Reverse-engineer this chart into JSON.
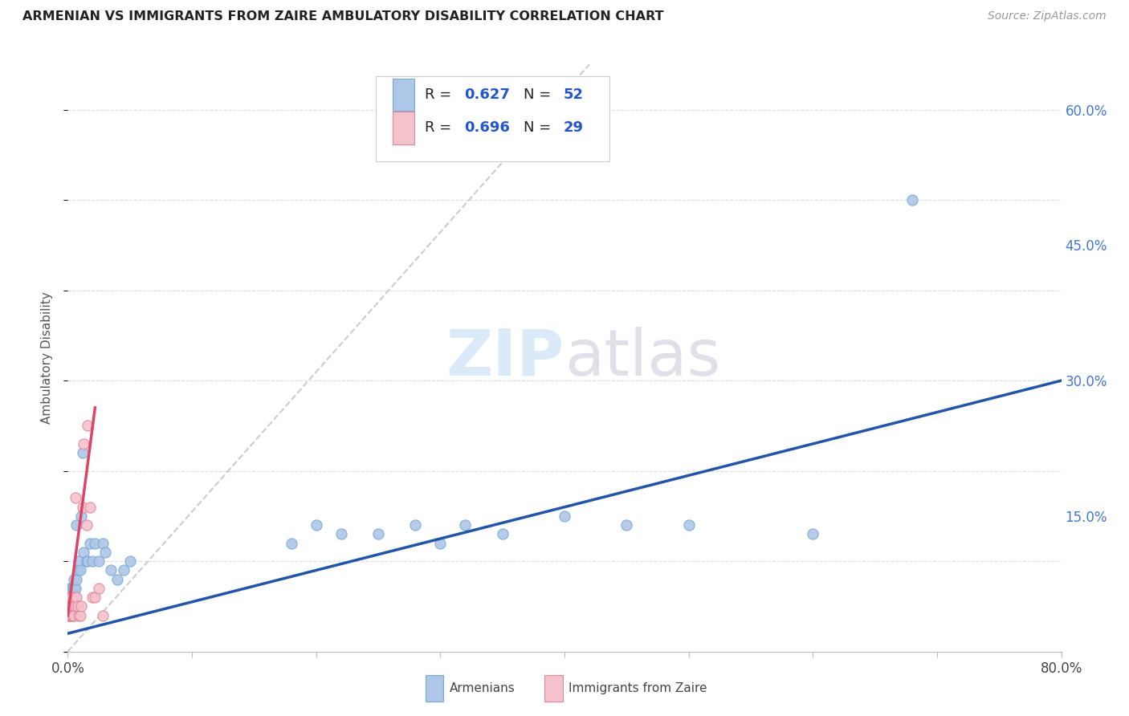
{
  "title": "ARMENIAN VS IMMIGRANTS FROM ZAIRE AMBULATORY DISABILITY CORRELATION CHART",
  "source": "Source: ZipAtlas.com",
  "ylabel": "Ambulatory Disability",
  "xlim": [
    0.0,
    0.8
  ],
  "ylim": [
    0.0,
    0.65
  ],
  "xticks": [
    0.0,
    0.1,
    0.2,
    0.3,
    0.4,
    0.5,
    0.6,
    0.7,
    0.8
  ],
  "xticklabels": [
    "0.0%",
    "",
    "",
    "",
    "",
    "",
    "",
    "",
    "80.0%"
  ],
  "yticks_right": [
    0.0,
    0.15,
    0.3,
    0.45,
    0.6
  ],
  "yticklabels_right": [
    "",
    "15.0%",
    "30.0%",
    "45.0%",
    "60.0%"
  ],
  "background_color": "#ffffff",
  "grid_color": "#dddddd",
  "armenians_color": "#aec6e8",
  "armenians_edge_color": "#7aaad0",
  "zaire_color": "#f5c2cc",
  "zaire_edge_color": "#e08898",
  "armenians_line_color": "#2255aa",
  "zaire_line_color": "#dd4466",
  "diagonal_color": "#cccccc",
  "armenians_x": [
    0.001,
    0.001,
    0.001,
    0.002,
    0.002,
    0.002,
    0.002,
    0.003,
    0.003,
    0.003,
    0.003,
    0.004,
    0.004,
    0.004,
    0.005,
    0.005,
    0.005,
    0.006,
    0.006,
    0.007,
    0.007,
    0.008,
    0.009,
    0.01,
    0.011,
    0.012,
    0.013,
    0.015,
    0.016,
    0.018,
    0.02,
    0.022,
    0.025,
    0.028,
    0.03,
    0.035,
    0.04,
    0.045,
    0.05,
    0.18,
    0.2,
    0.22,
    0.25,
    0.28,
    0.3,
    0.32,
    0.35,
    0.4,
    0.45,
    0.5,
    0.6,
    0.68
  ],
  "armenians_y": [
    0.04,
    0.05,
    0.06,
    0.05,
    0.06,
    0.06,
    0.07,
    0.05,
    0.06,
    0.07,
    0.07,
    0.06,
    0.07,
    0.06,
    0.07,
    0.07,
    0.08,
    0.06,
    0.07,
    0.08,
    0.14,
    0.09,
    0.1,
    0.09,
    0.15,
    0.22,
    0.11,
    0.1,
    0.1,
    0.12,
    0.1,
    0.12,
    0.1,
    0.12,
    0.11,
    0.09,
    0.08,
    0.09,
    0.1,
    0.12,
    0.14,
    0.13,
    0.13,
    0.14,
    0.12,
    0.14,
    0.13,
    0.15,
    0.14,
    0.14,
    0.13,
    0.5
  ],
  "zaire_x": [
    0.001,
    0.001,
    0.002,
    0.002,
    0.002,
    0.003,
    0.003,
    0.003,
    0.004,
    0.004,
    0.004,
    0.005,
    0.005,
    0.006,
    0.006,
    0.007,
    0.008,
    0.009,
    0.01,
    0.011,
    0.012,
    0.013,
    0.015,
    0.016,
    0.018,
    0.02,
    0.022,
    0.025,
    0.028
  ],
  "zaire_y": [
    0.04,
    0.06,
    0.04,
    0.05,
    0.06,
    0.04,
    0.05,
    0.06,
    0.04,
    0.05,
    0.04,
    0.05,
    0.04,
    0.17,
    0.05,
    0.06,
    0.05,
    0.04,
    0.04,
    0.05,
    0.16,
    0.23,
    0.14,
    0.25,
    0.16,
    0.06,
    0.06,
    0.07,
    0.04
  ]
}
